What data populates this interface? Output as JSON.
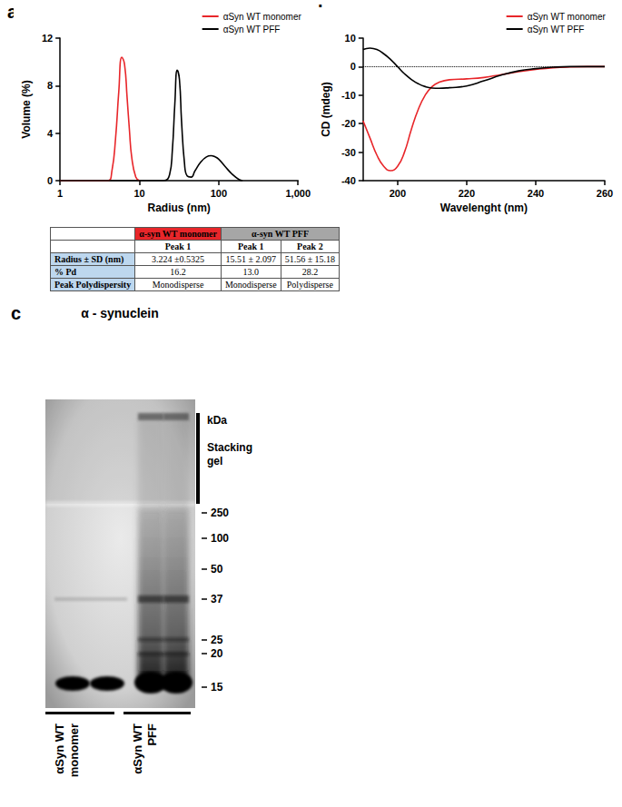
{
  "chart_data": [
    {
      "panel": "a",
      "type": "line",
      "x_label": "Radius (nm)",
      "y_label": "Volume (%)",
      "log": "x",
      "xlim": [
        1,
        1000
      ],
      "xticks": [
        1,
        10,
        100,
        1000
      ],
      "ylim": [
        0,
        12
      ],
      "yticks": [
        0,
        4,
        8,
        12
      ],
      "grid": false,
      "legend": "top-right",
      "series": [
        {
          "name": "αSyn WT monomer",
          "color": "#e8262a",
          "x": [
            1,
            4,
            4.5,
            5,
            5.5,
            6,
            6.5,
            7,
            7.5,
            8,
            9,
            10
          ],
          "values": [
            0,
            0,
            0.8,
            3.5,
            7.5,
            10.4,
            9.8,
            7,
            4.2,
            2,
            0.3,
            0
          ]
        },
        {
          "name": "αSyn WT PFF",
          "color": "#000000",
          "x": [
            1,
            20,
            24,
            26,
            28,
            30,
            32,
            34,
            37,
            40,
            45,
            50,
            60,
            70,
            80,
            90,
            100,
            120,
            150,
            180,
            200
          ],
          "values": [
            0,
            0,
            0.5,
            2.5,
            6.5,
            9.3,
            8.5,
            5,
            1.5,
            0.4,
            0.3,
            0.8,
            1.6,
            2.0,
            2.1,
            2.0,
            1.8,
            1.2,
            0.5,
            0.1,
            0
          ]
        }
      ]
    },
    {
      "panel": "b",
      "type": "line",
      "x_label": "Wavelenght (nm)",
      "y_label": "CD (mdeg)",
      "xlim": [
        190,
        260
      ],
      "xticks": [
        200,
        220,
        240,
        260
      ],
      "ylim": [
        -40,
        10
      ],
      "yticks": [
        -40,
        -30,
        -20,
        -10,
        0,
        10
      ],
      "grid": false,
      "legend": "top-right",
      "reference_line": {
        "y": 0,
        "line_style": "dotted"
      },
      "series": [
        {
          "name": "αSyn WT monomer",
          "color": "#e8262a",
          "x": [
            190,
            192,
            194,
            196,
            198,
            200,
            202,
            204,
            206,
            208,
            210,
            212,
            215,
            220,
            225,
            230,
            235,
            240,
            245,
            250,
            255,
            260
          ],
          "values": [
            -19,
            -25,
            -31,
            -35,
            -36.5,
            -35,
            -30,
            -22,
            -15,
            -10,
            -7,
            -5.5,
            -4.6,
            -4.3,
            -3.8,
            -2.8,
            -1.8,
            -1,
            -0.4,
            -0.1,
            0,
            0
          ]
        },
        {
          "name": "αSyn WT PFF",
          "color": "#000000",
          "x": [
            190,
            192,
            194,
            196,
            198,
            200,
            202,
            204,
            206,
            208,
            210,
            212,
            215,
            220,
            225,
            230,
            235,
            240,
            245,
            250,
            255,
            260
          ],
          "values": [
            6,
            6.5,
            6,
            4.5,
            2.5,
            0,
            -2.5,
            -4.5,
            -6,
            -7,
            -7.5,
            -7.6,
            -7.4,
            -6.8,
            -5,
            -3,
            -1.5,
            -0.7,
            -0.2,
            0,
            0,
            0
          ]
        }
      ]
    }
  ],
  "table": {
    "header": [
      "",
      "α-syn WT monomer",
      "α-syn WT PFF"
    ],
    "subheader": [
      "",
      "Peak 1",
      "Peak 1",
      "Peak 2"
    ],
    "rows": [
      [
        "Radius ± SD (nm)",
        "3.224 ±0.5325",
        "15.51 ± 2.097",
        "51.56 ± 15.18"
      ],
      [
        "% Pd",
        "16.2",
        "13.0",
        "28.2"
      ],
      [
        "Peak Polydispersity",
        "Monodisperse",
        "Monodisperse",
        "Polydisperse"
      ]
    ]
  },
  "blot": {
    "panel": "c",
    "title": "α - synuclein",
    "unit": "kDa",
    "stacking_label": [
      "Stacking",
      "gel"
    ],
    "markers": [
      "250",
      "100",
      "50",
      "37",
      "25",
      "20",
      "15"
    ],
    "lanes": [
      [
        "αSyn WT",
        "monomer"
      ],
      [
        "αSyn WT",
        "PFF"
      ]
    ]
  }
}
